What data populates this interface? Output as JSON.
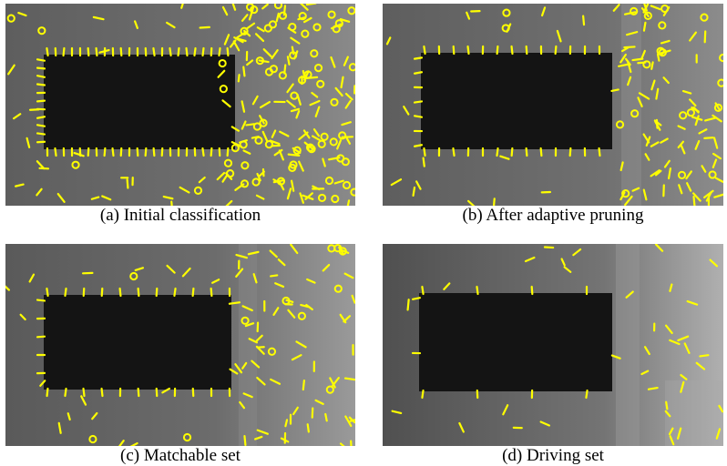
{
  "panels": [
    {
      "id": "a",
      "caption": "(a)  Initial classification",
      "density": 1.0
    },
    {
      "id": "b",
      "caption": "(b)  After adaptive pruning",
      "density": 0.55
    },
    {
      "id": "c",
      "caption": "(c)  Matchable set",
      "density": 0.45
    },
    {
      "id": "d",
      "caption": "(d)  Driving set",
      "density": 0.15
    }
  ],
  "colors": {
    "feature": "#ffff00",
    "background": "#6a6a6a",
    "dark_region": "#141414",
    "page": "#ffffff"
  }
}
